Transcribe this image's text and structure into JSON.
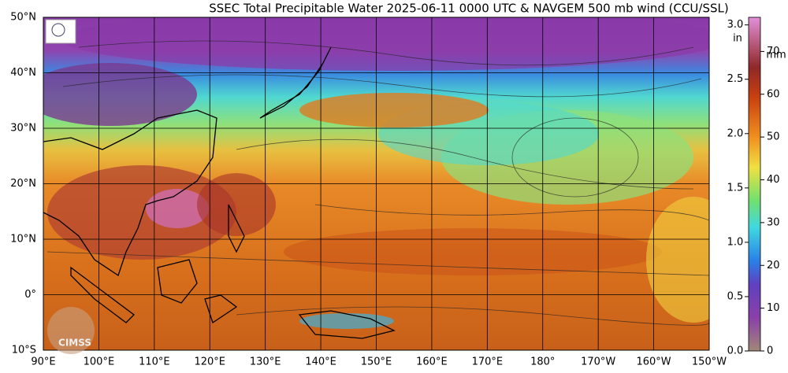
{
  "title": "SSEC Total Precipitable Water  2025-06-11 0000 UTC & NAVGEM 500 mb wind (CCU/SSL)",
  "map": {
    "lat_range": [
      -10,
      50
    ],
    "lon_range": [
      90,
      210
    ],
    "latitudes": [
      {
        "value": 50,
        "label": "50°N"
      },
      {
        "value": 40,
        "label": "40°N"
      },
      {
        "value": 30,
        "label": "30°N"
      },
      {
        "value": 20,
        "label": "20°N"
      },
      {
        "value": 10,
        "label": "10°N"
      },
      {
        "value": 0,
        "label": "0°"
      },
      {
        "value": -10,
        "label": "10°S"
      }
    ],
    "longitudes": [
      {
        "value": 90,
        "label": "90°E"
      },
      {
        "value": 100,
        "label": "100°E"
      },
      {
        "value": 110,
        "label": "110°E"
      },
      {
        "value": 120,
        "label": "120°E"
      },
      {
        "value": 130,
        "label": "130°E"
      },
      {
        "value": 140,
        "label": "140°E"
      },
      {
        "value": 150,
        "label": "150°E"
      },
      {
        "value": 160,
        "label": "160°E"
      },
      {
        "value": 170,
        "label": "170°E"
      },
      {
        "value": 180,
        "label": "180°"
      },
      {
        "value": 190,
        "label": "170°W"
      },
      {
        "value": 200,
        "label": "160°W"
      },
      {
        "value": 210,
        "label": "150°W"
      }
    ]
  },
  "colorbar": {
    "unit_in": "in",
    "unit_mm": "mm",
    "in_range": [
      0,
      3.07
    ],
    "in_ticks": [
      {
        "value": 3,
        "label": "3.0"
      },
      {
        "value": 2.5,
        "label": "2.5"
      },
      {
        "value": 2,
        "label": "2.0"
      },
      {
        "value": 1.5,
        "label": "1.5"
      },
      {
        "value": 1,
        "label": "1.0"
      },
      {
        "value": 0.5,
        "label": "0.5"
      },
      {
        "value": 0,
        "label": "0.0"
      }
    ],
    "mm_ticks": [
      70,
      60,
      50,
      40,
      30,
      20,
      10,
      0
    ]
  },
  "logo": "CIMSS"
}
